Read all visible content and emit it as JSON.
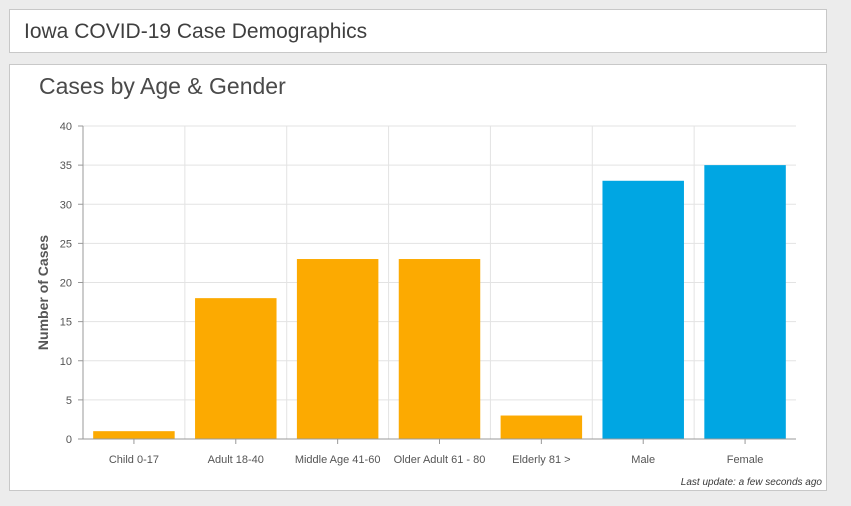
{
  "header": {
    "title": "Iowa COVID-19 Case Demographics"
  },
  "chart_panel": {
    "title": "Cases by Age & Gender",
    "footer": "Last update: a few seconds ago"
  },
  "colors": {
    "age": "#fcaa01",
    "gender": "#00a6e3",
    "grid": "#e3e3e3",
    "axis": "#999999"
  },
  "chart_data": {
    "type": "bar",
    "title": "Cases by Age & Gender",
    "xlabel": "",
    "ylabel": "Number of Cases",
    "ylim": [
      0,
      40
    ],
    "yticks": [
      0,
      5,
      10,
      15,
      20,
      25,
      30,
      35,
      40
    ],
    "grid": true,
    "categories": [
      "Child 0-17",
      "Adult 18-40",
      "Middle Age 41-60",
      "Older Adult 61 - 80",
      "Elderly 81 >",
      "Male",
      "Female"
    ],
    "values": [
      1,
      18,
      23,
      23,
      3,
      33,
      35
    ],
    "bar_colors": [
      "#fcaa01",
      "#fcaa01",
      "#fcaa01",
      "#fcaa01",
      "#fcaa01",
      "#00a6e3",
      "#00a6e3"
    ]
  }
}
